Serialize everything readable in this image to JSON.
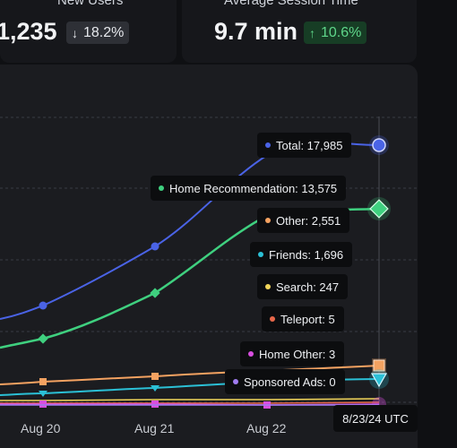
{
  "metrics": {
    "new_users": {
      "title": "New Users",
      "value": "1,235",
      "change": "18.2%",
      "direction": "down"
    },
    "avg_session": {
      "title": "Average Session Time",
      "value": "9.7 min",
      "change": "10.6%",
      "direction": "up"
    }
  },
  "icons": {
    "down": "arrow-down-icon",
    "up": "arrow-up-icon"
  },
  "chart_data": {
    "type": "line",
    "x_ticks": [
      "Aug 20",
      "Aug 21",
      "Aug 22"
    ],
    "hover_label": "8/23/24 UTC",
    "grid": true,
    "series": [
      {
        "name": "Total",
        "label": "Total: 17,985",
        "color": "#4a63e6",
        "marker": "circle"
      },
      {
        "name": "Home Recommendation",
        "label": "Home Recommendation: 13,575",
        "color": "#3fd07f",
        "marker": "diamond"
      },
      {
        "name": "Other",
        "label": "Other: 2,551",
        "color": "#f4a261",
        "marker": "square"
      },
      {
        "name": "Friends",
        "label": "Friends: 1,696",
        "color": "#2bc0d6",
        "marker": "triangle"
      },
      {
        "name": "Search",
        "label": "Search: 247",
        "color": "#f2d65a",
        "marker": "none"
      },
      {
        "name": "Teleport",
        "label": "Teleport: 5",
        "color": "#e8684a",
        "marker": "none"
      },
      {
        "name": "Home Other",
        "label": "Home Other: 3",
        "color": "#d84ee0",
        "marker": "square"
      },
      {
        "name": "Sponsored Ads",
        "label": "Sponsored Ads: 0",
        "color": "#a07cf0",
        "marker": "none"
      }
    ]
  }
}
